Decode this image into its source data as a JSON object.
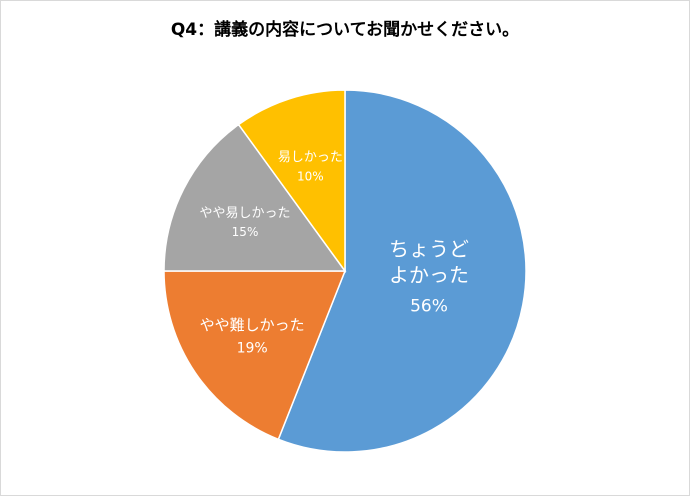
{
  "chart_data": {
    "type": "pie",
    "title": "Q4：講義の内容についてお聞かせください。",
    "slices": [
      {
        "label": "ちょうどよかった",
        "label_lines": [
          "ちょうど",
          "よかった"
        ],
        "value": 56,
        "value_text": "56%",
        "color": "#5b9bd5"
      },
      {
        "label": "やや難しかった",
        "label_lines": [
          "やや難しかった"
        ],
        "value": 19,
        "value_text": "19%",
        "color": "#ed7d31"
      },
      {
        "label": "やや易しかった",
        "label_lines": [
          "やや易しかった"
        ],
        "value": 15,
        "value_text": "15%",
        "color": "#a5a5a5"
      },
      {
        "label": "易しかった",
        "label_lines": [
          "易しかった"
        ],
        "value": 10,
        "value_text": "10%",
        "color": "#ffc000"
      }
    ],
    "start_angle": "12 o'clock",
    "direction": "clockwise",
    "legend": "none"
  }
}
